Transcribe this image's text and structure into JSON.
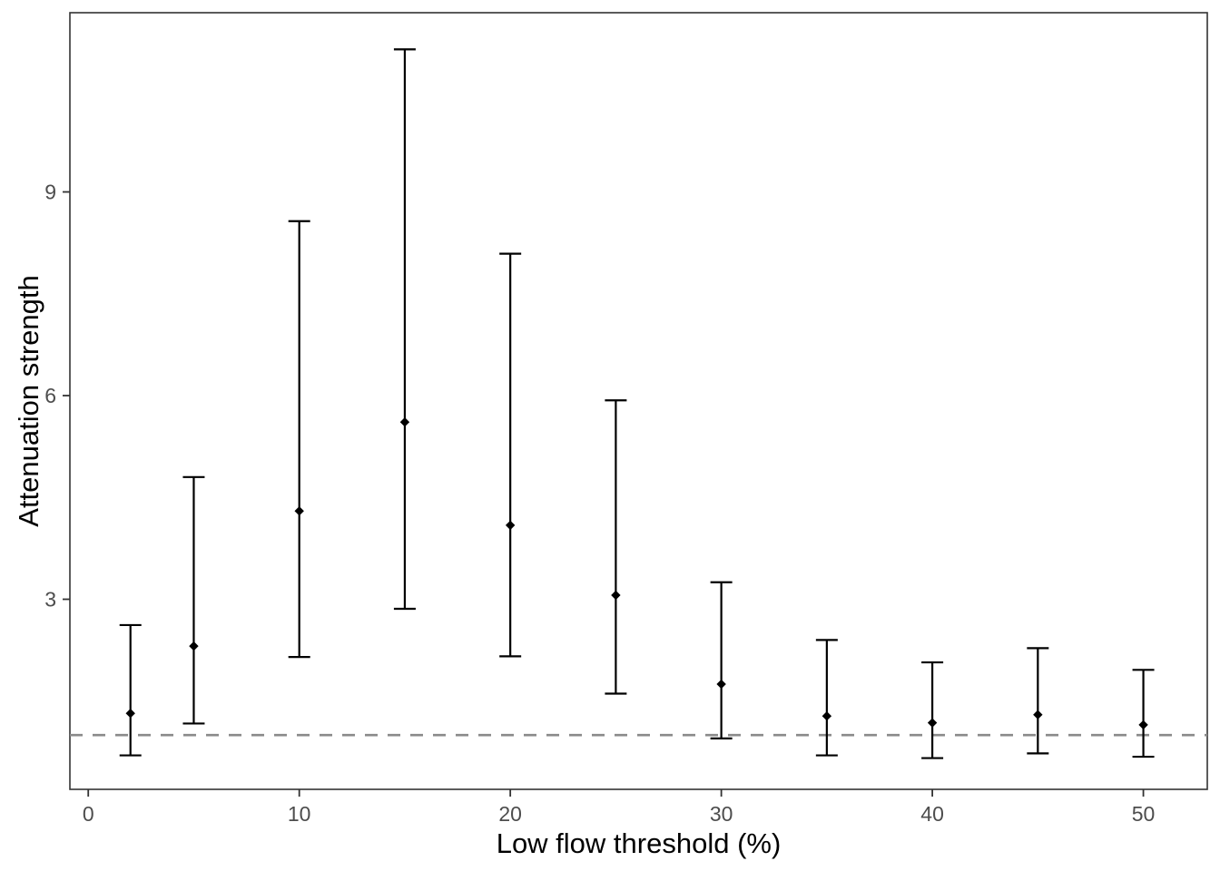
{
  "figure": {
    "background": "#ffffff"
  },
  "chart_data": {
    "type": "scatter",
    "subtype": "pointrange-errorbar",
    "title": "",
    "xlabel": "Low flow threshold (%)",
    "ylabel": "Attenuation strength",
    "x_ticks": [
      0,
      10,
      20,
      30,
      40,
      50
    ],
    "y_ticks": [
      3,
      6,
      9
    ],
    "xlim": [
      -0.87,
      53.03
    ],
    "ylim": [
      0.2,
      11.64
    ],
    "grid": false,
    "legend": null,
    "reference_line": {
      "y": 1,
      "style": "dashed"
    },
    "points": [
      {
        "x": 2,
        "y": 1.32,
        "lo": 0.7,
        "hi": 2.62
      },
      {
        "x": 5,
        "y": 2.31,
        "lo": 1.17,
        "hi": 4.8
      },
      {
        "x": 10,
        "y": 4.3,
        "lo": 2.15,
        "hi": 8.57
      },
      {
        "x": 15,
        "y": 5.61,
        "lo": 2.86,
        "hi": 11.1
      },
      {
        "x": 20,
        "y": 4.09,
        "lo": 2.16,
        "hi": 8.09
      },
      {
        "x": 25,
        "y": 3.06,
        "lo": 1.61,
        "hi": 5.93
      },
      {
        "x": 30,
        "y": 1.75,
        "lo": 0.95,
        "hi": 3.25
      },
      {
        "x": 35,
        "y": 1.28,
        "lo": 0.7,
        "hi": 2.4
      },
      {
        "x": 40,
        "y": 1.18,
        "lo": 0.66,
        "hi": 2.07
      },
      {
        "x": 45,
        "y": 1.3,
        "lo": 0.73,
        "hi": 2.28
      },
      {
        "x": 50,
        "y": 1.15,
        "lo": 0.68,
        "hi": 1.96
      }
    ],
    "colors": {
      "point": "#000000",
      "errorbar": "#000000",
      "reference_line": "#8a8a8a",
      "panel_border": "#333333",
      "panel_background": "#ffffff",
      "tick_mark": "#333333",
      "tick_label": "#4d4d4d",
      "axis_title": "#000000"
    }
  }
}
